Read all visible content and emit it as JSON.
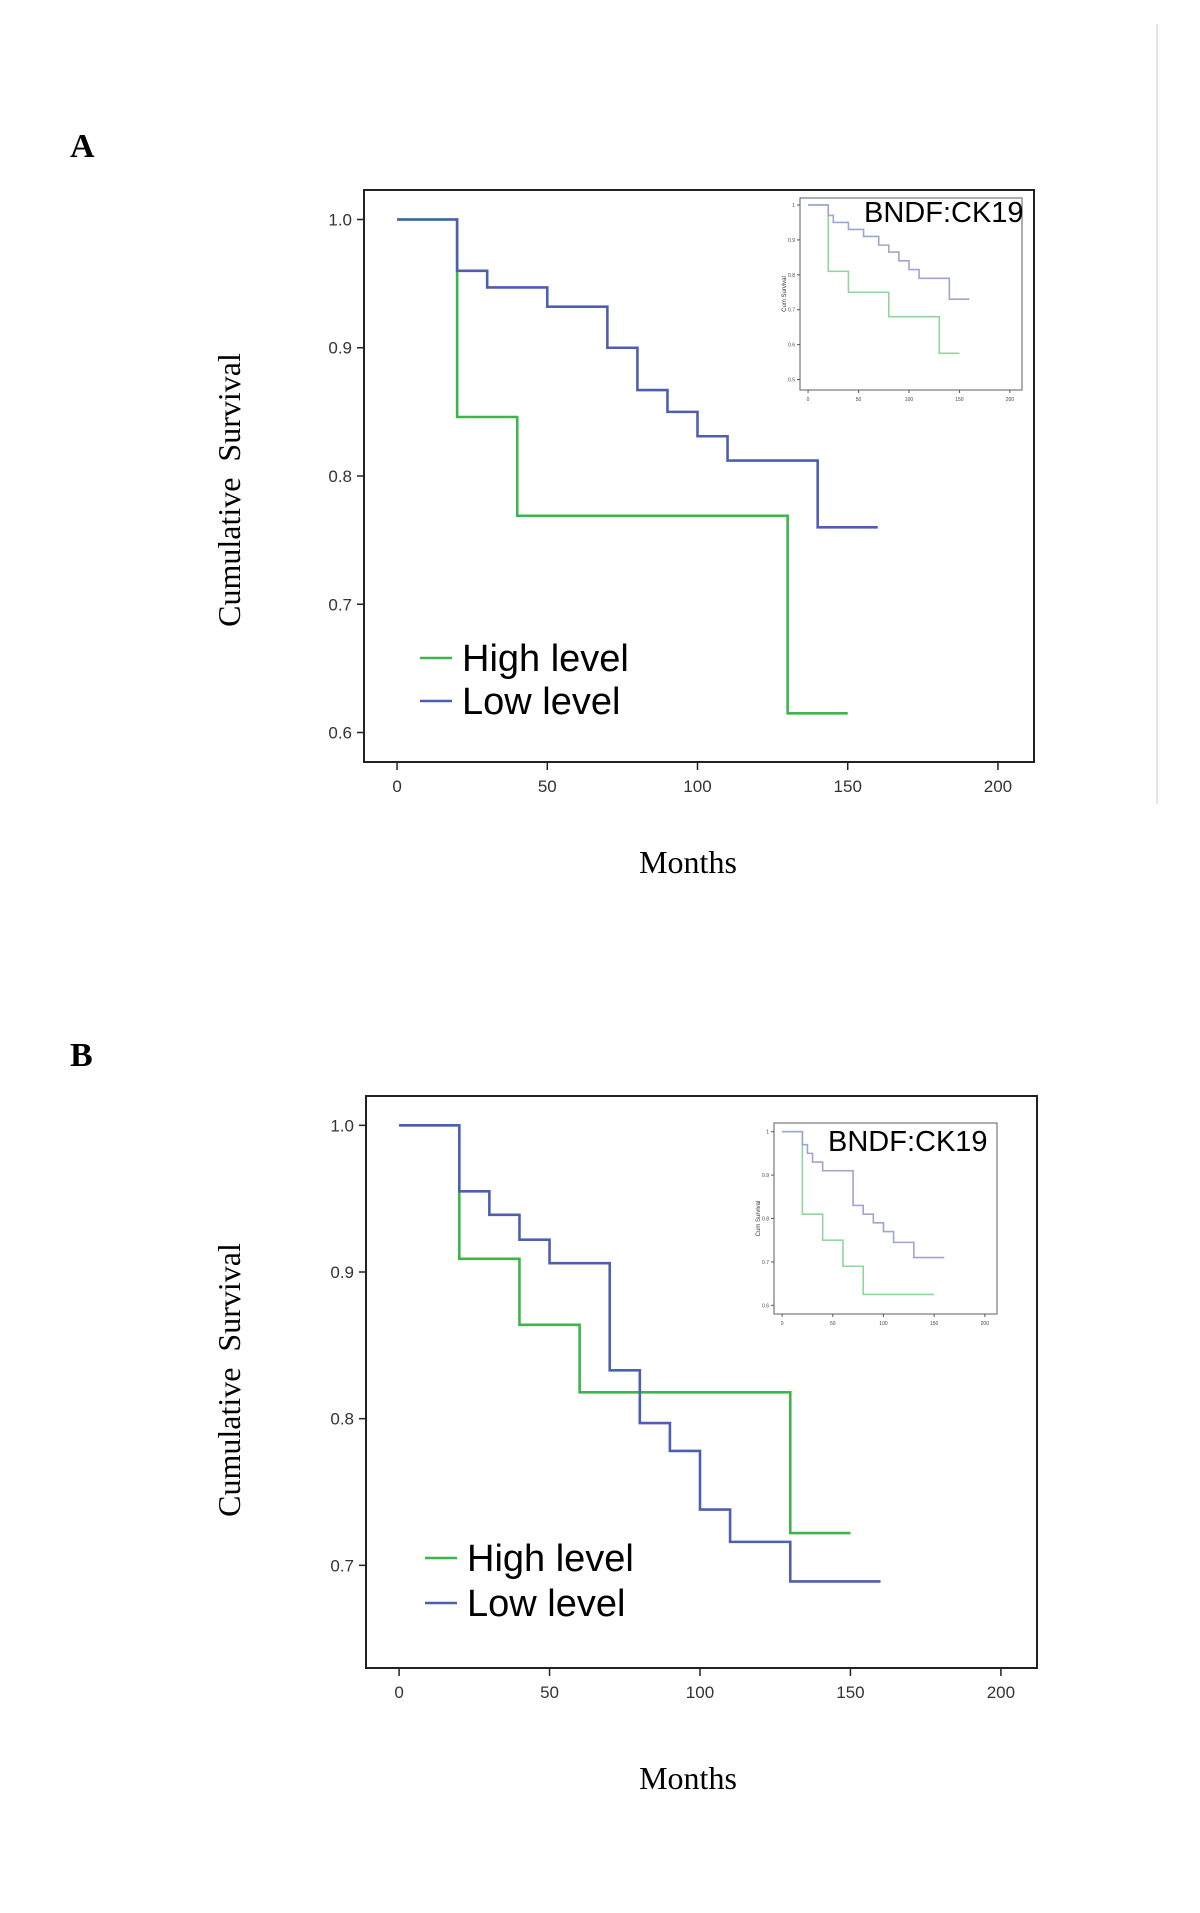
{
  "panels": [
    {
      "label": "A"
    },
    {
      "label": "B"
    }
  ],
  "colors": {
    "high": "#3db54b",
    "low": "#4f5fb0",
    "high_inset": "#93d59d",
    "low_inset": "#9ea6cf",
    "axis": "#222222",
    "divider": "#e6e6e6"
  },
  "chart_data": [
    {
      "type": "line",
      "step": true,
      "panel": "A",
      "xlabel": "Months",
      "ylabel": "Cumulative  Survival",
      "xlim": [
        -11,
        212
      ],
      "ylim": [
        0.577,
        1.023
      ],
      "xticks": [
        0,
        50,
        100,
        150,
        200
      ],
      "yticks": [
        0.6,
        0.7,
        0.8,
        0.9,
        1.0
      ],
      "ytick_labels": [
        "0.6",
        "0.7",
        "0.8",
        "0.9",
        "1.0"
      ],
      "legend_position": "bottom-left",
      "series": [
        {
          "name": "High level",
          "color": "#3db54b",
          "x": [
            0,
            20,
            40,
            130,
            150
          ],
          "y": [
            1.0,
            0.846,
            0.769,
            0.615,
            0.615
          ]
        },
        {
          "name": "Low level",
          "color": "#4f5fb0",
          "x": [
            0,
            20,
            30,
            50,
            70,
            80,
            90,
            100,
            110,
            140,
            160
          ],
          "y": [
            1.0,
            0.96,
            0.947,
            0.932,
            0.9,
            0.867,
            0.85,
            0.831,
            0.812,
            0.76,
            0.76
          ]
        }
      ],
      "inset": {
        "title": "BNDF:CK19",
        "ylabel": "Cum Survival",
        "xlim": [
          -8,
          212
        ],
        "ylim": [
          0.47,
          1.02
        ],
        "xticks": [
          0,
          50,
          100,
          150,
          200
        ],
        "yticks": [
          0.5,
          0.6,
          0.7,
          0.8,
          0.9,
          1.0
        ],
        "series": [
          {
            "x": [
              0,
              20,
              40,
              80,
              130,
              150
            ],
            "y": [
              1.0,
              0.81,
              0.75,
              0.68,
              0.575,
              0.575
            ]
          },
          {
            "x": [
              0,
              20,
              25,
              40,
              55,
              70,
              80,
              90,
              100,
              110,
              140,
              160
            ],
            "y": [
              1.0,
              0.97,
              0.95,
              0.93,
              0.91,
              0.885,
              0.865,
              0.84,
              0.815,
              0.79,
              0.73,
              0.73
            ]
          }
        ]
      }
    },
    {
      "type": "line",
      "step": true,
      "panel": "B",
      "xlabel": "Months",
      "ylabel": "Cumulative  Survival",
      "xlim": [
        -11,
        212
      ],
      "ylim": [
        0.63,
        1.02
      ],
      "xticks": [
        0,
        50,
        100,
        150,
        200
      ],
      "yticks": [
        0.7,
        0.8,
        0.9,
        1.0
      ],
      "ytick_labels": [
        "0.7",
        "0.8",
        "0.9",
        "1.0"
      ],
      "legend_position": "bottom-left",
      "series": [
        {
          "name": "High level",
          "color": "#3db54b",
          "x": [
            0,
            20,
            40,
            60,
            130,
            150
          ],
          "y": [
            1.0,
            0.909,
            0.864,
            0.818,
            0.722,
            0.722
          ]
        },
        {
          "name": "Low level",
          "color": "#4f5fb0",
          "x": [
            0,
            20,
            30,
            40,
            50,
            70,
            80,
            90,
            100,
            110,
            130,
            160
          ],
          "y": [
            1.0,
            0.955,
            0.939,
            0.922,
            0.906,
            0.833,
            0.797,
            0.778,
            0.738,
            0.716,
            0.689,
            0.689
          ]
        }
      ],
      "inset": {
        "title": "BNDF:CK19",
        "ylabel": "Cum Survival",
        "xlim": [
          -8,
          212
        ],
        "ylim": [
          0.58,
          1.02
        ],
        "xticks": [
          0,
          50,
          100,
          150,
          200
        ],
        "yticks": [
          0.6,
          0.7,
          0.8,
          0.9,
          1.0
        ],
        "series": [
          {
            "x": [
              0,
              20,
              40,
              60,
              80,
              150
            ],
            "y": [
              1.0,
              0.81,
              0.75,
              0.69,
              0.625,
              0.625
            ]
          },
          {
            "x": [
              0,
              20,
              25,
              30,
              40,
              70,
              80,
              90,
              100,
              110,
              130,
              160
            ],
            "y": [
              1.0,
              0.97,
              0.95,
              0.93,
              0.91,
              0.83,
              0.81,
              0.79,
              0.77,
              0.745,
              0.71,
              0.71
            ]
          }
        ]
      }
    }
  ]
}
